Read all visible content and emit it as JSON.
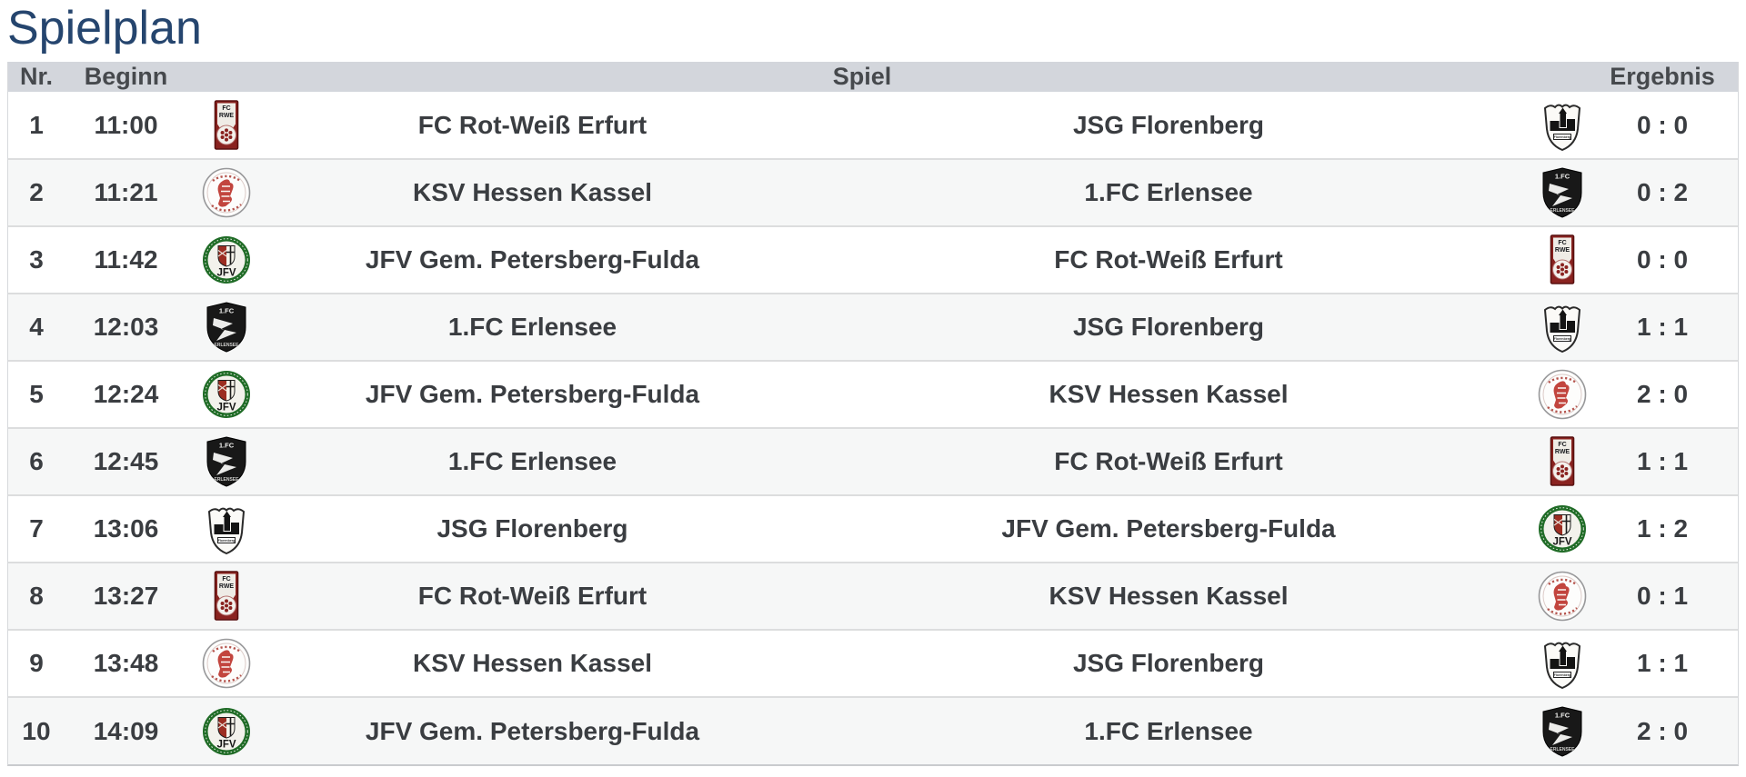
{
  "page": {
    "title": "Spielplan"
  },
  "colors": {
    "title_text": "#25456e",
    "header_bg": "#d3d6dc",
    "header_text": "#46494d",
    "row_text": "#3a3d41",
    "row_alt_bg": "#f6f7f7",
    "separator": "#dcddde"
  },
  "table": {
    "columns": {
      "nr": "Nr.",
      "begin": "Beginn",
      "match": "Spiel",
      "result": "Ergebnis"
    },
    "teams": {
      "rwe": "FC Rot-Weiß Erfurt",
      "florenberg": "JSG Florenberg",
      "ksv": "KSV Hessen Kassel",
      "erlensee": "1.FC Erlensee",
      "jfv": "JFV Gem. Petersberg-Fulda"
    },
    "logo_icons": [
      "rwe-club-badge-icon",
      "florenberg-club-badge-icon",
      "ksv-club-badge-icon",
      "erlensee-club-badge-icon",
      "jfv-club-badge-icon"
    ],
    "rows": [
      {
        "nr": "1",
        "time": "11:00",
        "home": {
          "name": "FC Rot-Weiß Erfurt",
          "logo": "rwe"
        },
        "away": {
          "name": "JSG Florenberg",
          "logo": "florenberg"
        },
        "score": "0 : 0"
      },
      {
        "nr": "2",
        "time": "11:21",
        "home": {
          "name": "KSV Hessen Kassel",
          "logo": "ksv"
        },
        "away": {
          "name": "1.FC Erlensee",
          "logo": "erlensee"
        },
        "score": "0 : 2"
      },
      {
        "nr": "3",
        "time": "11:42",
        "home": {
          "name": "JFV Gem. Petersberg-Fulda",
          "logo": "jfv"
        },
        "away": {
          "name": "FC Rot-Weiß Erfurt",
          "logo": "rwe"
        },
        "score": "0 : 0"
      },
      {
        "nr": "4",
        "time": "12:03",
        "home": {
          "name": "1.FC Erlensee",
          "logo": "erlensee"
        },
        "away": {
          "name": "JSG Florenberg",
          "logo": "florenberg"
        },
        "score": "1 : 1"
      },
      {
        "nr": "5",
        "time": "12:24",
        "home": {
          "name": "JFV Gem. Petersberg-Fulda",
          "logo": "jfv"
        },
        "away": {
          "name": "KSV Hessen Kassel",
          "logo": "ksv"
        },
        "score": "2 : 0"
      },
      {
        "nr": "6",
        "time": "12:45",
        "home": {
          "name": "1.FC Erlensee",
          "logo": "erlensee"
        },
        "away": {
          "name": "FC Rot-Weiß Erfurt",
          "logo": "rwe"
        },
        "score": "1 : 1"
      },
      {
        "nr": "7",
        "time": "13:06",
        "home": {
          "name": "JSG Florenberg",
          "logo": "florenberg"
        },
        "away": {
          "name": "JFV Gem. Petersberg-Fulda",
          "logo": "jfv"
        },
        "score": "1 : 2"
      },
      {
        "nr": "8",
        "time": "13:27",
        "home": {
          "name": "FC Rot-Weiß Erfurt",
          "logo": "rwe"
        },
        "away": {
          "name": "KSV Hessen Kassel",
          "logo": "ksv"
        },
        "score": "0 : 1"
      },
      {
        "nr": "9",
        "time": "13:48",
        "home": {
          "name": "KSV Hessen Kassel",
          "logo": "ksv"
        },
        "away": {
          "name": "JSG Florenberg",
          "logo": "florenberg"
        },
        "score": "1 : 1"
      },
      {
        "nr": "10",
        "time": "14:09",
        "home": {
          "name": "JFV Gem. Petersberg-Fulda",
          "logo": "jfv"
        },
        "away": {
          "name": "1.FC Erlensee",
          "logo": "erlensee"
        },
        "score": "2 : 0"
      }
    ]
  }
}
